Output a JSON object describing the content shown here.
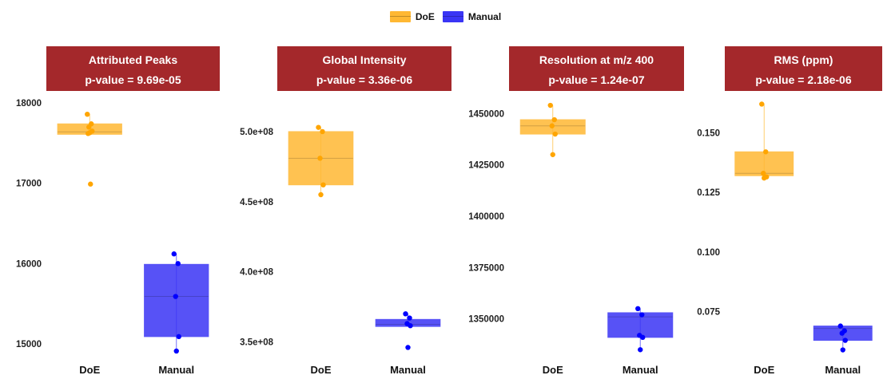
{
  "legend": [
    {
      "label": "DoE",
      "color": "#FFB833"
    },
    {
      "label": "Manual",
      "color": "#3A35F5"
    }
  ],
  "colors": {
    "strip_bg": "#A4282B",
    "strip_text": "#FFFFFF",
    "doe_fill": "#FFB833",
    "doe_point": "#FFA500",
    "manual_fill": "#3A35F5",
    "manual_point": "#0000FF"
  },
  "chart_data": [
    {
      "type": "box",
      "title": "Attributed Peaks",
      "subtitle": "p-value = 9.69e-05",
      "categories": [
        "DoE",
        "Manual"
      ],
      "ylim": [
        14850,
        18150
      ],
      "yticks": [
        {
          "value": 15000,
          "label": "15000"
        },
        {
          "value": 16000,
          "label": "16000"
        },
        {
          "value": 17000,
          "label": "17000"
        },
        {
          "value": 18000,
          "label": "18000"
        }
      ],
      "boxes": [
        {
          "q1": 17610,
          "median": 17640,
          "q3": 17740,
          "min": 17610,
          "max": 17860,
          "points": [
            17860,
            17740,
            17700,
            17650,
            17630,
            17620,
            16990
          ]
        },
        {
          "q1": 15090,
          "median": 15590,
          "q3": 15990,
          "min": 14910,
          "max": 16120,
          "points": [
            16120,
            16000,
            15590,
            15090,
            14910
          ]
        }
      ]
    },
    {
      "type": "box",
      "title": "Global Intensity",
      "subtitle": "p-value = 3.36e-06",
      "categories": [
        "DoE",
        "Manual"
      ],
      "ylim": [
        340000000,
        529000000
      ],
      "yticks": [
        {
          "value": 350000000,
          "label": "3.5e+08"
        },
        {
          "value": 400000000,
          "label": "4.0e+08"
        },
        {
          "value": 450000000,
          "label": "4.5e+08"
        },
        {
          "value": 500000000,
          "label": "5.0e+08"
        }
      ],
      "boxes": [
        {
          "q1": 462000000,
          "median": 481000000,
          "q3": 500000000,
          "min": 455000000,
          "max": 503000000,
          "points": [
            503000000,
            500000000,
            481000000,
            462000000,
            455000000
          ]
        },
        {
          "q1": 361000000,
          "median": 362500000,
          "q3": 366000000,
          "min": 361000000,
          "max": 370000000,
          "points": [
            370000000,
            367000000,
            363000000,
            361500000,
            346000000
          ]
        }
      ]
    },
    {
      "type": "box",
      "title": "Resolution at m/z 400",
      "subtitle": "p-value = 1.24e-07",
      "categories": [
        "DoE",
        "Manual"
      ],
      "ylim": [
        1332000,
        1461000
      ],
      "yticks": [
        {
          "value": 1350000,
          "label": "1350000"
        },
        {
          "value": 1375000,
          "label": "1375000"
        },
        {
          "value": 1400000,
          "label": "1400000"
        },
        {
          "value": 1425000,
          "label": "1425000"
        },
        {
          "value": 1450000,
          "label": "1450000"
        }
      ],
      "boxes": [
        {
          "q1": 1440000,
          "median": 1444000,
          "q3": 1447000,
          "min": 1430000,
          "max": 1454000,
          "points": [
            1454000,
            1447000,
            1444000,
            1440000,
            1430000
          ]
        },
        {
          "q1": 1341000,
          "median": 1351000,
          "q3": 1353000,
          "min": 1335000,
          "max": 1355000,
          "points": [
            1355000,
            1352000,
            1342000,
            1341000,
            1335000
          ]
        }
      ]
    },
    {
      "type": "box",
      "title": "RMS (ppm)",
      "subtitle": "p-value = 2.18e-06",
      "categories": [
        "DoE",
        "Manual"
      ],
      "ylim": [
        0.0565,
        0.1675
      ],
      "yticks": [
        {
          "value": 0.075,
          "label": "0.075"
        },
        {
          "value": 0.1,
          "label": "0.100"
        },
        {
          "value": 0.125,
          "label": "0.125"
        },
        {
          "value": 0.15,
          "label": "0.150"
        }
      ],
      "boxes": [
        {
          "q1": 0.132,
          "median": 0.133,
          "q3": 0.142,
          "min": 0.131,
          "max": 0.162,
          "points": [
            0.162,
            0.142,
            0.133,
            0.1315,
            0.131
          ]
        },
        {
          "q1": 0.063,
          "median": 0.068,
          "q3": 0.069,
          "min": 0.059,
          "max": 0.069,
          "points": [
            0.069,
            0.067,
            0.066,
            0.063,
            0.059
          ]
        }
      ]
    }
  ]
}
